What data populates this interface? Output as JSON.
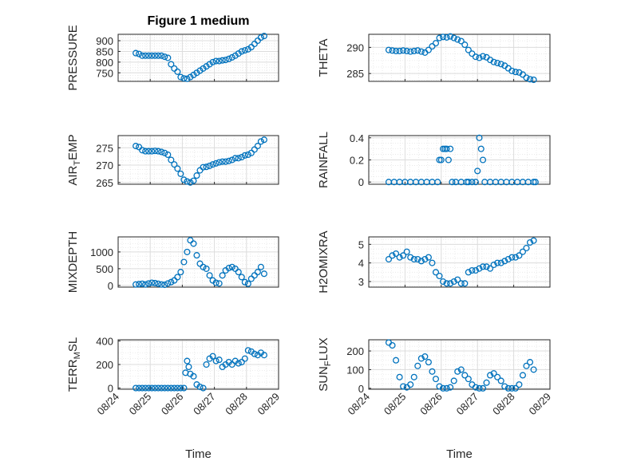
{
  "chart_data": [
    {
      "type": "scatter",
      "title": "Figure 1 medium",
      "ylabel": "PRESSURE",
      "xlabel": "",
      "ylim": [
        710,
        930
      ],
      "yticks": [
        750,
        800,
        850,
        900
      ],
      "x": [
        0.55,
        0.65,
        0.75,
        0.85,
        0.95,
        1.05,
        1.15,
        1.25,
        1.35,
        1.45,
        1.55,
        1.65,
        1.75,
        1.85,
        1.95,
        2.05,
        2.15,
        2.25,
        2.35,
        2.45,
        2.55,
        2.65,
        2.75,
        2.85,
        2.95,
        3.05,
        3.15,
        3.25,
        3.35,
        3.45,
        3.55,
        3.65,
        3.75,
        3.85,
        3.95,
        4.05,
        4.15,
        4.25,
        4.35,
        4.45,
        4.55
      ],
      "y": [
        842,
        838,
        830,
        830,
        830,
        830,
        830,
        830,
        830,
        825,
        820,
        790,
        770,
        755,
        730,
        724,
        722,
        730,
        740,
        750,
        760,
        770,
        780,
        790,
        800,
        805,
        805,
        808,
        810,
        815,
        822,
        830,
        840,
        850,
        855,
        860,
        870,
        885,
        900,
        915,
        922
      ],
      "color": "#0072BD"
    },
    {
      "type": "scatter",
      "title": "",
      "ylabel": "THETA",
      "xlabel": "",
      "ylim": [
        283.5,
        292.5
      ],
      "yticks": [
        285,
        290
      ],
      "x": [
        0.55,
        0.65,
        0.75,
        0.85,
        0.95,
        1.05,
        1.15,
        1.25,
        1.35,
        1.45,
        1.55,
        1.65,
        1.75,
        1.85,
        1.95,
        2.05,
        2.15,
        2.25,
        2.35,
        2.45,
        2.55,
        2.65,
        2.75,
        2.85,
        2.95,
        3.05,
        3.15,
        3.25,
        3.35,
        3.45,
        3.55,
        3.65,
        3.75,
        3.85,
        3.95,
        4.05,
        4.15,
        4.25,
        4.35,
        4.45,
        4.55
      ],
      "y": [
        289.5,
        289.4,
        289.3,
        289.3,
        289.4,
        289.3,
        289.2,
        289.3,
        289.4,
        289.2,
        289.0,
        289.5,
        290.2,
        290.8,
        291.8,
        292.0,
        291.9,
        292.1,
        291.8,
        291.5,
        291.2,
        290.5,
        289.5,
        288.8,
        288.2,
        288.0,
        288.3,
        288.1,
        287.6,
        287.2,
        287.0,
        286.8,
        286.5,
        286.0,
        285.5,
        285.3,
        285.2,
        284.8,
        284.2,
        283.9,
        283.8
      ],
      "color": "#0072BD"
    },
    {
      "type": "scatter",
      "title": "",
      "ylabel": "AIR_TEMP",
      "xlabel": "",
      "ylim": [
        264.5,
        278.5
      ],
      "yticks": [
        265,
        270,
        275
      ],
      "x": [
        0.55,
        0.65,
        0.75,
        0.85,
        0.95,
        1.05,
        1.15,
        1.25,
        1.35,
        1.45,
        1.55,
        1.65,
        1.75,
        1.85,
        1.95,
        2.05,
        2.15,
        2.25,
        2.35,
        2.45,
        2.55,
        2.65,
        2.75,
        2.85,
        2.95,
        3.05,
        3.15,
        3.25,
        3.35,
        3.45,
        3.55,
        3.65,
        3.75,
        3.85,
        3.95,
        4.05,
        4.15,
        4.25,
        4.35,
        4.45,
        4.55
      ],
      "y": [
        275.5,
        275.2,
        274.3,
        274.0,
        274.0,
        274.0,
        274.1,
        274.0,
        273.8,
        273.5,
        273.0,
        271.5,
        270.2,
        269.0,
        267.5,
        265.8,
        265.3,
        265.0,
        265.5,
        267.0,
        268.5,
        269.4,
        269.5,
        269.8,
        270.2,
        270.5,
        270.8,
        271.0,
        271.0,
        271.2,
        271.5,
        272.0,
        272.0,
        272.3,
        272.8,
        273.0,
        273.5,
        274.5,
        275.5,
        276.8,
        277.3
      ],
      "color": "#0072BD"
    },
    {
      "type": "scatter",
      "title": "",
      "ylabel": "RAINFALL",
      "xlabel": "",
      "ylim": [
        -0.02,
        0.42
      ],
      "yticks": [
        0,
        0.2,
        0.4
      ],
      "x": [
        0.55,
        0.7,
        0.85,
        1.0,
        1.15,
        1.3,
        1.45,
        1.6,
        1.75,
        1.9,
        1.95,
        2.0,
        2.05,
        2.1,
        2.15,
        2.2,
        2.25,
        2.3,
        2.4,
        2.55,
        2.7,
        2.85,
        3.0,
        3.05,
        3.1,
        3.15,
        3.2,
        3.35,
        3.5,
        3.65,
        3.8,
        3.95,
        4.1,
        4.25,
        4.4,
        4.55,
        4.6,
        2.75,
        2.95
      ],
      "y": [
        0,
        0,
        0,
        0,
        0,
        0,
        0,
        0,
        0,
        0,
        0.2,
        0.2,
        0.3,
        0.3,
        0.3,
        0.2,
        0.3,
        0,
        0,
        0,
        0,
        0,
        0.1,
        0.4,
        0.3,
        0.2,
        0,
        0,
        0,
        0,
        0,
        0,
        0,
        0,
        0,
        0,
        0,
        0,
        0
      ],
      "color": "#0072BD"
    },
    {
      "type": "scatter",
      "title": "",
      "ylabel": "MIXDEPTH",
      "xlabel": "",
      "ylim": [
        -50,
        1450
      ],
      "yticks": [
        0,
        500,
        1000
      ],
      "x": [
        0.55,
        0.65,
        0.75,
        0.85,
        0.95,
        1.05,
        1.15,
        1.25,
        1.35,
        1.45,
        1.55,
        1.65,
        1.75,
        1.85,
        1.95,
        2.05,
        2.15,
        2.25,
        2.35,
        2.45,
        2.55,
        2.65,
        2.75,
        2.85,
        2.95,
        3.05,
        3.15,
        3.25,
        3.35,
        3.45,
        3.55,
        3.65,
        3.75,
        3.85,
        3.95,
        4.05,
        4.15,
        4.25,
        4.35,
        4.45,
        4.55
      ],
      "y": [
        30,
        40,
        50,
        30,
        60,
        80,
        70,
        50,
        30,
        20,
        60,
        100,
        150,
        250,
        400,
        700,
        1000,
        1350,
        1250,
        900,
        650,
        550,
        500,
        300,
        150,
        80,
        60,
        300,
        450,
        520,
        550,
        500,
        400,
        250,
        100,
        50,
        200,
        300,
        400,
        550,
        350
      ],
      "color": "#0072BD"
    },
    {
      "type": "scatter",
      "title": "",
      "ylabel": "H2OMIXRA",
      "xlabel": "",
      "ylim": [
        2.7,
        5.4
      ],
      "yticks": [
        3,
        4,
        5
      ],
      "x": [
        0.55,
        0.65,
        0.75,
        0.85,
        0.95,
        1.05,
        1.15,
        1.25,
        1.35,
        1.45,
        1.55,
        1.65,
        1.75,
        1.85,
        1.95,
        2.05,
        2.15,
        2.25,
        2.35,
        2.45,
        2.55,
        2.65,
        2.75,
        2.85,
        2.95,
        3.05,
        3.15,
        3.25,
        3.35,
        3.45,
        3.55,
        3.65,
        3.75,
        3.85,
        3.95,
        4.05,
        4.15,
        4.25,
        4.35,
        4.45,
        4.55
      ],
      "y": [
        4.2,
        4.4,
        4.5,
        4.3,
        4.4,
        4.6,
        4.3,
        4.2,
        4.2,
        4.1,
        4.2,
        4.3,
        4.0,
        3.5,
        3.3,
        3.0,
        2.9,
        2.9,
        3.0,
        3.1,
        2.9,
        2.9,
        3.5,
        3.6,
        3.6,
        3.7,
        3.8,
        3.8,
        3.7,
        3.9,
        4.0,
        4.0,
        4.1,
        4.2,
        4.3,
        4.3,
        4.4,
        4.6,
        4.8,
        5.1,
        5.2
      ],
      "color": "#0072BD"
    },
    {
      "type": "scatter",
      "title": "",
      "ylabel": "TERR_MSL",
      "xlabel": "Time",
      "ylim": [
        -10,
        410
      ],
      "yticks": [
        0,
        200,
        400
      ],
      "xticklabels": [
        "08/24",
        "08/25",
        "08/26",
        "08/27",
        "08/28",
        "08/29"
      ],
      "x": [
        0.55,
        0.65,
        0.75,
        0.85,
        0.95,
        1.05,
        1.15,
        1.25,
        1.35,
        1.45,
        1.55,
        1.65,
        1.75,
        1.85,
        1.95,
        2.05,
        2.1,
        2.15,
        2.2,
        2.25,
        2.35,
        2.45,
        2.55,
        2.65,
        2.75,
        2.85,
        2.95,
        3.05,
        3.15,
        3.25,
        3.35,
        3.45,
        3.55,
        3.65,
        3.75,
        3.85,
        3.95,
        4.05,
        4.15,
        4.25,
        4.35,
        4.45,
        4.55
      ],
      "y": [
        0,
        0,
        0,
        0,
        0,
        0,
        0,
        0,
        0,
        0,
        0,
        0,
        0,
        0,
        0,
        0,
        130,
        230,
        180,
        120,
        100,
        30,
        10,
        0,
        200,
        250,
        270,
        230,
        240,
        180,
        200,
        220,
        200,
        230,
        210,
        220,
        250,
        320,
        310,
        290,
        280,
        300,
        280
      ],
      "color": "#0072BD"
    },
    {
      "type": "scatter",
      "title": "",
      "ylabel": "SUN_FLUX",
      "xlabel": "Time",
      "ylim": [
        -5,
        260
      ],
      "yticks": [
        0,
        100,
        200
      ],
      "xticklabels": [
        "08/24",
        "08/25",
        "08/26",
        "08/27",
        "08/28",
        "08/29"
      ],
      "x": [
        0.55,
        0.65,
        0.75,
        0.85,
        0.95,
        1.05,
        1.15,
        1.25,
        1.35,
        1.45,
        1.55,
        1.65,
        1.75,
        1.85,
        1.95,
        2.05,
        2.15,
        2.25,
        2.35,
        2.45,
        2.55,
        2.65,
        2.75,
        2.85,
        2.95,
        3.05,
        3.15,
        3.25,
        3.35,
        3.45,
        3.55,
        3.65,
        3.75,
        3.85,
        3.95,
        4.05,
        4.15,
        4.25,
        4.35,
        4.45,
        4.55
      ],
      "y": [
        245,
        230,
        150,
        60,
        10,
        5,
        20,
        60,
        120,
        160,
        170,
        140,
        90,
        50,
        10,
        0,
        0,
        5,
        40,
        90,
        100,
        70,
        50,
        20,
        5,
        0,
        0,
        30,
        70,
        80,
        60,
        40,
        10,
        0,
        0,
        0,
        20,
        70,
        120,
        140,
        100
      ],
      "color": "#0072BD"
    }
  ]
}
